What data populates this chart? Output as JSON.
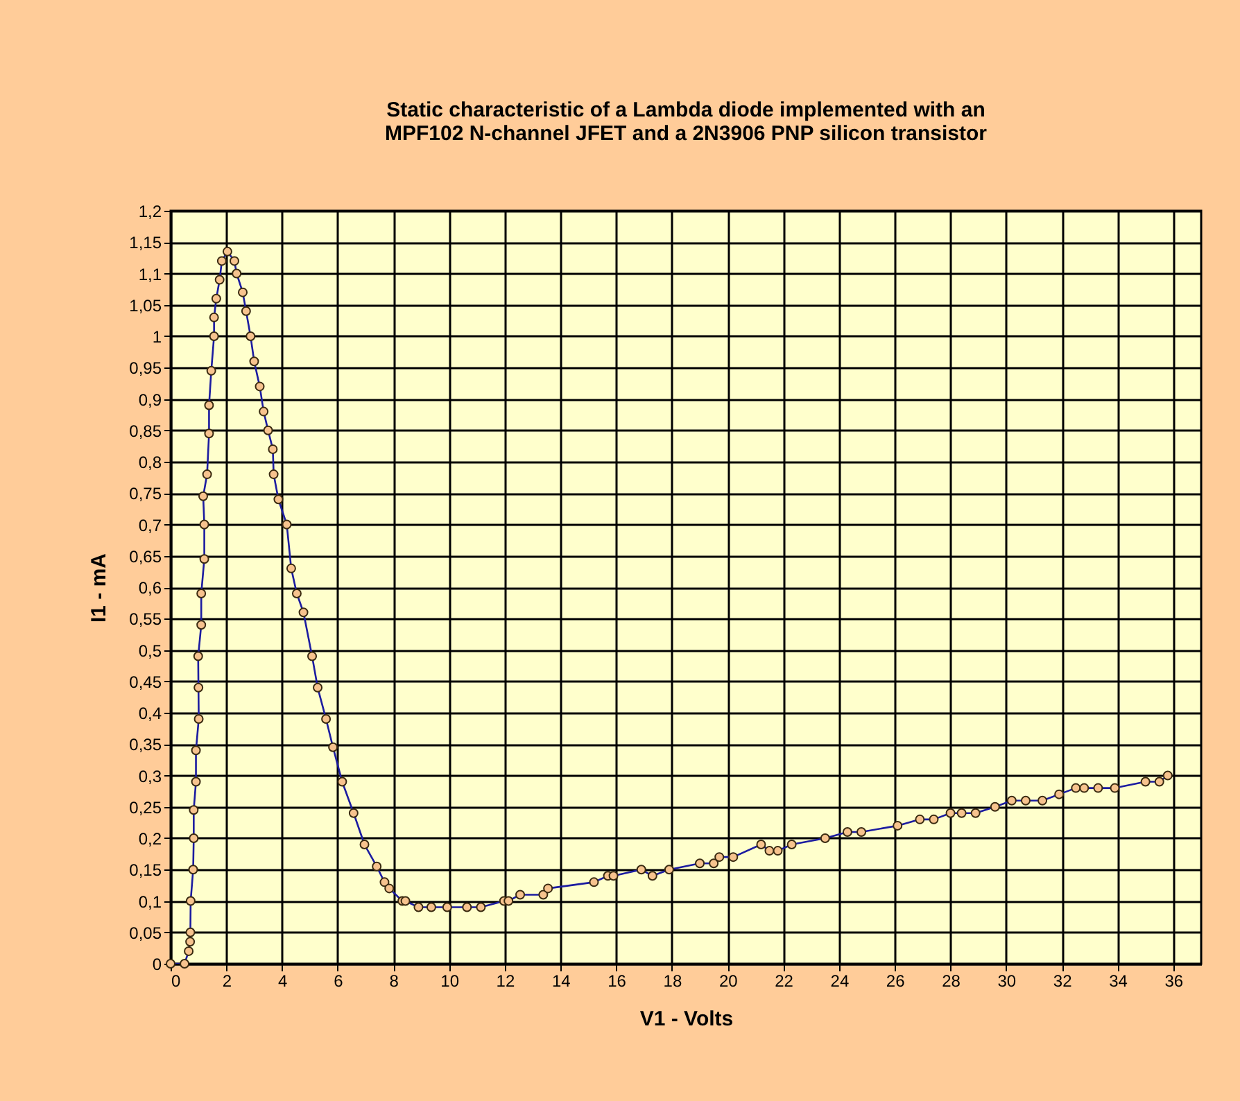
{
  "chart_data": {
    "type": "line",
    "title": "Static characteristic of a Lambda diode implemented with an\nMPF102 N-channel JFET and a 2N3906 PNP silicon transistor",
    "xlabel": "V1 - Volts",
    "ylabel": "I1 - mA",
    "x": [
      0,
      0.5,
      0.65,
      0.7,
      0.71,
      0.72,
      0.81,
      0.83,
      0.83,
      0.91,
      0.91,
      1.01,
      1.0,
      0.99,
      1.1,
      1.1,
      1.21,
      1.21,
      1.17,
      1.31,
      1.38,
      1.38,
      1.46,
      1.56,
      1.56,
      1.64,
      1.76,
      1.84,
      2.04,
      2.29,
      2.37,
      2.59,
      2.71,
      2.87,
      3.0,
      3.2,
      3.34,
      3.5,
      3.67,
      3.7,
      3.87,
      4.17,
      4.33,
      4.53,
      4.77,
      5.08,
      5.28,
      5.58,
      5.83,
      6.16,
      6.57,
      6.96,
      7.4,
      7.68,
      7.85,
      8.32,
      8.43,
      8.9,
      9.36,
      9.93,
      10.64,
      11.14,
      11.97,
      12.13,
      12.55,
      13.38,
      13.55,
      15.2,
      15.7,
      15.9,
      16.9,
      17.3,
      17.9,
      19.0,
      19.5,
      19.7,
      20.2,
      21.2,
      21.5,
      21.8,
      22.3,
      23.5,
      24.3,
      24.8,
      26.1,
      26.9,
      27.4,
      28.0,
      28.4,
      28.9,
      29.6,
      30.2,
      30.7,
      31.3,
      31.9,
      32.5,
      32.8,
      33.3,
      33.9,
      35.0,
      35.5,
      35.8
    ],
    "series": [
      {
        "color": "#1c1ca0",
        "values": [
          0,
          0,
          0.02,
          0.035,
          0.05,
          0.1,
          0.15,
          0.2,
          0.245,
          0.29,
          0.34,
          0.39,
          0.44,
          0.49,
          0.54,
          0.59,
          0.645,
          0.7,
          0.745,
          0.78,
          0.845,
          0.89,
          0.945,
          1.0,
          1.03,
          1.06,
          1.09,
          1.12,
          1.135,
          1.12,
          1.1,
          1.07,
          1.04,
          1.0,
          0.96,
          0.92,
          0.88,
          0.85,
          0.82,
          0.78,
          0.74,
          0.7,
          0.63,
          0.59,
          0.56,
          0.49,
          0.44,
          0.39,
          0.345,
          0.29,
          0.24,
          0.19,
          0.155,
          0.13,
          0.12,
          0.1,
          0.1,
          0.09,
          0.09,
          0.09,
          0.09,
          0.09,
          0.1,
          0.1,
          0.11,
          0.11,
          0.12,
          0.13,
          0.14,
          0.14,
          0.15,
          0.14,
          0.15,
          0.16,
          0.16,
          0.17,
          0.17,
          0.19,
          0.18,
          0.18,
          0.19,
          0.2,
          0.21,
          0.21,
          0.22,
          0.23,
          0.23,
          0.24,
          0.24,
          0.24,
          0.25,
          0.26,
          0.26,
          0.26,
          0.27,
          0.28,
          0.28,
          0.28,
          0.28,
          0.29,
          0.29,
          0.3
        ]
      }
    ],
    "xlim": [
      0,
      37
    ],
    "xticks": [
      0,
      2,
      4,
      6,
      8,
      10,
      12,
      14,
      16,
      18,
      20,
      22,
      24,
      26,
      28,
      30,
      32,
      34,
      36
    ],
    "ylim": [
      0,
      1.2
    ],
    "yticks": [
      0,
      {
        "value": 0.05,
        "label": "0,05"
      },
      {
        "value": 0.1,
        "label": "0,1"
      },
      {
        "value": 0.15,
        "label": "0,15"
      },
      {
        "value": 0.2,
        "label": "0,2"
      },
      {
        "value": 0.25,
        "label": "0,25"
      },
      {
        "value": 0.3,
        "label": "0,3"
      },
      {
        "value": 0.35,
        "label": "0,35"
      },
      {
        "value": 0.4,
        "label": "0,4"
      },
      {
        "value": 0.45,
        "label": "0,45"
      },
      {
        "value": 0.5,
        "label": "0,5"
      },
      {
        "value": 0.55,
        "label": "0,55"
      },
      {
        "value": 0.6,
        "label": "0,6"
      },
      {
        "value": 0.65,
        "label": "0,65"
      },
      {
        "value": 0.7,
        "label": "0,7"
      },
      {
        "value": 0.75,
        "label": "0,75"
      },
      {
        "value": 0.8,
        "label": "0,8"
      },
      {
        "value": 0.85,
        "label": "0,85"
      },
      {
        "value": 0.9,
        "label": "0,9"
      },
      {
        "value": 0.95,
        "label": "0,95"
      },
      1,
      {
        "value": 1.05,
        "label": "1,05"
      },
      {
        "value": 1.1,
        "label": "1,1"
      },
      {
        "value": 1.15,
        "label": "1,15"
      },
      {
        "value": 1.2,
        "label": "1,2"
      }
    ],
    "grid": true,
    "marker": "circle",
    "line_style": "solid"
  }
}
